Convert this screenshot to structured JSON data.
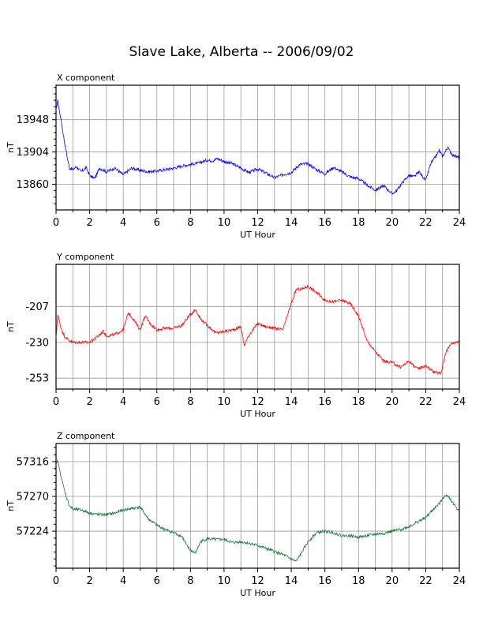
{
  "title": "Slave Lake, Alberta -- 2006/09/02",
  "chart_data": [
    {
      "type": "line",
      "title": "X component",
      "xlabel": "UT Hour",
      "ylabel": "nT",
      "xlim": [
        0,
        24
      ],
      "ylim": [
        13825,
        13995
      ],
      "xticks": [
        0,
        2,
        4,
        6,
        8,
        10,
        12,
        14,
        16,
        18,
        20,
        22,
        24
      ],
      "yticks": [
        13860,
        13904,
        13948
      ],
      "grid": true,
      "color": "#0000ff",
      "series": [
        {
          "x": [
            0.0,
            0.1,
            0.2,
            0.3,
            0.5,
            0.7,
            0.8,
            1.0,
            1.2,
            1.5,
            1.8,
            2.0,
            2.3,
            2.6,
            3.0,
            3.5,
            4.0,
            4.5,
            5.0,
            5.5,
            6.0,
            6.5,
            7.0,
            7.5,
            8.0,
            8.5,
            9.0,
            9.3,
            9.6,
            10.0,
            10.5,
            11.0,
            11.5,
            12.0,
            12.5,
            13.0,
            13.5,
            14.0,
            14.5,
            15.0,
            15.5,
            16.0,
            16.5,
            17.0,
            17.5,
            18.0,
            18.5,
            19.0,
            19.5,
            20.0,
            20.3,
            20.6,
            21.0,
            21.3,
            21.6,
            22.0,
            22.3,
            22.6,
            22.8,
            23.0,
            23.3,
            23.6,
            24.0
          ],
          "y": [
            13960,
            13975,
            13960,
            13948,
            13918,
            13893,
            13882,
            13880,
            13884,
            13877,
            13883,
            13872,
            13868,
            13882,
            13877,
            13882,
            13873,
            13882,
            13879,
            13877,
            13878,
            13880,
            13882,
            13885,
            13887,
            13889,
            13893,
            13892,
            13895,
            13891,
            13888,
            13882,
            13876,
            13881,
            13875,
            13869,
            13873,
            13876,
            13887,
            13888,
            13880,
            13874,
            13883,
            13877,
            13870,
            13868,
            13859,
            13852,
            13858,
            13847,
            13852,
            13862,
            13872,
            13870,
            13877,
            13865,
            13888,
            13898,
            13906,
            13898,
            13910,
            13900,
            13896
          ]
        }
      ]
    },
    {
      "type": "line",
      "title": "Y component",
      "xlabel": "UT Hour",
      "ylabel": "nT",
      "xlim": [
        0,
        24
      ],
      "ylim": [
        -260,
        -180
      ],
      "xticks": [
        0,
        2,
        4,
        6,
        8,
        10,
        12,
        14,
        16,
        18,
        20,
        22,
        24
      ],
      "yticks": [
        -207,
        -230,
        -253
      ],
      "grid": true,
      "color": "#ff0000",
      "series": [
        {
          "x": [
            0.0,
            0.1,
            0.3,
            0.5,
            0.8,
            1.0,
            1.5,
            2.0,
            2.5,
            2.8,
            3.0,
            3.5,
            4.0,
            4.3,
            4.6,
            5.0,
            5.3,
            5.6,
            6.0,
            6.5,
            7.0,
            7.5,
            8.0,
            8.3,
            8.6,
            9.0,
            9.5,
            10.0,
            10.5,
            11.0,
            11.2,
            11.5,
            12.0,
            12.5,
            13.0,
            13.5,
            14.0,
            14.3,
            14.6,
            15.0,
            15.5,
            16.0,
            16.5,
            17.0,
            17.5,
            18.0,
            18.5,
            19.0,
            19.5,
            20.0,
            20.5,
            21.0,
            21.5,
            22.0,
            22.5,
            22.9,
            23.2,
            23.5,
            24.0
          ],
          "y": [
            -228,
            -212,
            -221,
            -226,
            -229,
            -230,
            -230,
            -230,
            -226,
            -223,
            -226,
            -225,
            -222,
            -211,
            -215,
            -222,
            -213,
            -218,
            -222,
            -221,
            -221,
            -219,
            -212,
            -209,
            -215,
            -219,
            -224,
            -223,
            -222,
            -220,
            -232,
            -225,
            -218,
            -220,
            -221,
            -222,
            -205,
            -196,
            -196,
            -194,
            -198,
            -203,
            -204,
            -203,
            -205,
            -213,
            -229,
            -236,
            -242,
            -243,
            -246,
            -242,
            -247,
            -245,
            -249,
            -250,
            -236,
            -231,
            -229
          ]
        }
      ]
    },
    {
      "type": "line",
      "title": "Z component",
      "xlabel": "UT Hour",
      "ylabel": "nT",
      "xlim": [
        0,
        24
      ],
      "ylim": [
        57175,
        57340
      ],
      "xticks": [
        0,
        2,
        4,
        6,
        8,
        10,
        12,
        14,
        16,
        18,
        20,
        22,
        24
      ],
      "yticks": [
        57224,
        57270,
        57316
      ],
      "grid": true,
      "color": "#1a7a3e",
      "series": [
        {
          "x": [
            0.0,
            0.1,
            0.2,
            0.4,
            0.6,
            0.8,
            1.0,
            1.5,
            2.0,
            2.5,
            3.0,
            3.5,
            4.0,
            4.5,
            5.0,
            5.5,
            6.0,
            6.5,
            7.0,
            7.5,
            7.8,
            8.0,
            8.3,
            8.6,
            9.0,
            9.5,
            10.0,
            10.5,
            11.0,
            11.5,
            12.0,
            12.5,
            13.0,
            13.5,
            14.0,
            14.3,
            14.6,
            15.0,
            15.5,
            16.0,
            16.5,
            17.0,
            17.5,
            18.0,
            18.5,
            19.0,
            19.5,
            20.0,
            20.5,
            21.0,
            21.5,
            22.0,
            22.5,
            22.8,
            23.0,
            23.3,
            23.6,
            24.0
          ],
          "y": [
            57310,
            57318,
            57306,
            57287,
            57270,
            57258,
            57253,
            57252,
            57248,
            57246,
            57246,
            57248,
            57252,
            57254,
            57256,
            57240,
            57232,
            57226,
            57222,
            57217,
            57204,
            57199,
            57195,
            57210,
            57214,
            57213,
            57213,
            57209,
            57210,
            57208,
            57205,
            57201,
            57197,
            57193,
            57187,
            57184,
            57195,
            57210,
            57222,
            57224,
            57222,
            57218,
            57218,
            57216,
            57218,
            57220,
            57221,
            57224,
            57226,
            57230,
            57236,
            57242,
            57254,
            57260,
            57268,
            57272,
            57262,
            57250
          ]
        }
      ]
    }
  ]
}
